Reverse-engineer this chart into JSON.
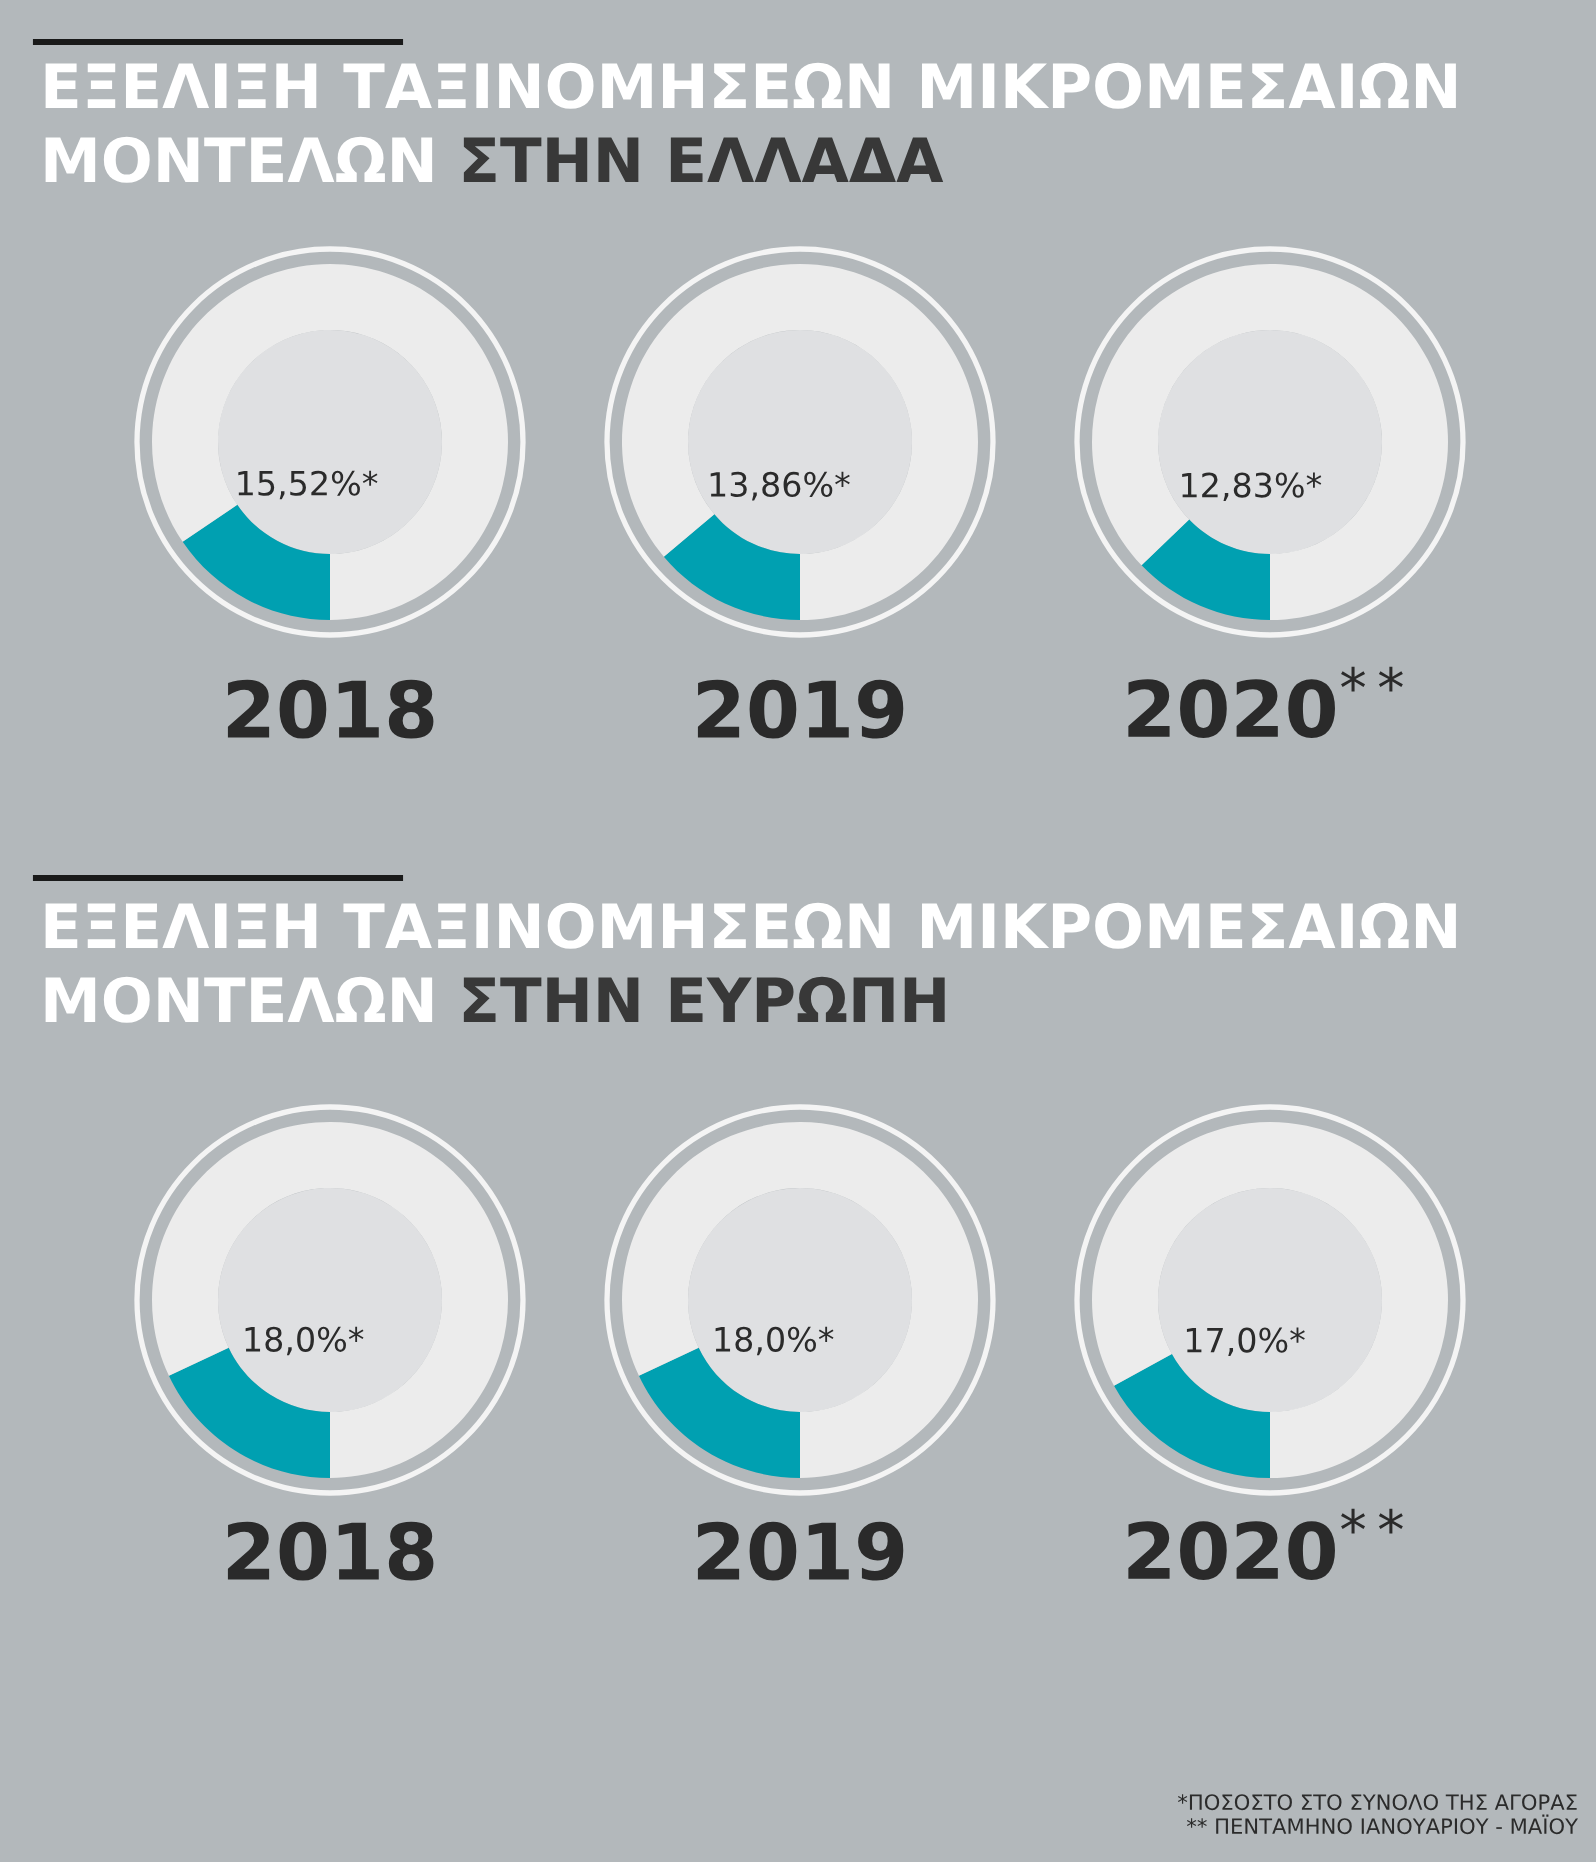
{
  "chart_data": [
    {
      "type": "donut",
      "title": "ΕΞΕΛΙΞΗ ΤΑΞΙΝΟΜΗΣΕΩΝ ΜΙΚΡΟΜΕΣΑΙΩΝ ΜΟΝΤΕΛΩΝ ΣΤΗΝ ΕΛΛΑΔΑ",
      "xlabel": "2018",
      "categories": [
        null,
        null
      ],
      "values": [
        15.52,
        84.48
      ],
      "colors": [
        "#00a0b1",
        "#ececec"
      ],
      "value_labels": [
        "15,52%*",
        null
      ]
    },
    {
      "type": "donut",
      "xlabel": "2019",
      "categories": [
        null,
        null
      ],
      "values": [
        13.86,
        86.14
      ],
      "colors": [
        "#00a0b1",
        "#ececec"
      ],
      "value_labels": [
        "13,86%*",
        null
      ]
    },
    {
      "type": "donut",
      "xlabel": "2020$^{**}$",
      "categories": [
        null,
        null
      ],
      "values": [
        12.83,
        87.17
      ],
      "colors": [
        "#00a0b1",
        "#ececec"
      ],
      "value_labels": [
        "12,83%*",
        null
      ]
    },
    {
      "type": "donut",
      "title": "ΕΞΕΛΙΞΗ ΤΑΞΙΝΟΜΗΣΕΩΝ ΜΙΚΡΟΜΕΣΑΙΩΝ ΜΟΝΤΕΛΩΝ ΣΤΗΝ ΕΥΡΩΠΗ",
      "xlabel": "2018",
      "categories": [
        null,
        null
      ],
      "values": [
        18.0,
        82.0
      ],
      "colors": [
        "#00a0b1",
        "#ececec"
      ],
      "value_labels": [
        "18,0%*",
        null
      ]
    },
    {
      "type": "donut",
      "xlabel": "2019",
      "categories": [
        null,
        null
      ],
      "values": [
        18.0,
        82.0
      ],
      "colors": [
        "#00a0b1",
        "#ececec"
      ],
      "value_labels": [
        "18,0%*",
        null
      ]
    },
    {
      "type": "donut",
      "xlabel": "2020$^{**}$",
      "categories": [
        null,
        null
      ],
      "values": [
        17.0,
        83.0
      ],
      "colors": [
        "#00a0b1",
        "#ececec"
      ],
      "value_labels": [
        "17,0%*",
        null
      ],
      "annotations": [
        "*ΠΟΣΟΣΤΟ ΣΤΟ ΣΥΝΟΛΟ ΤΗΣ ΑΓΟΡΑΣ",
        "** ΠΕΝΤΑΜΗΝΟ ΙΑΝΟΥΑΡΙΟΥ - ΜΑΪΟΥ"
      ]
    }
  ]
}
